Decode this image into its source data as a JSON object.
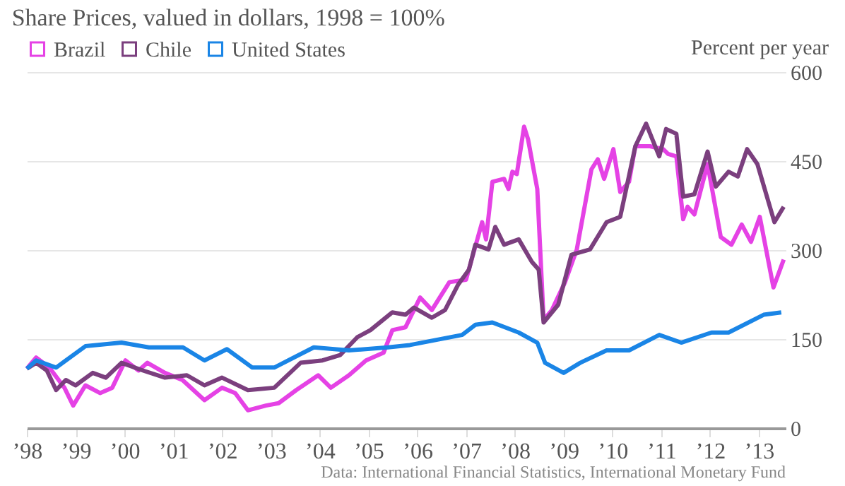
{
  "chart_data": {
    "type": "line",
    "title": "Share Prices, valued in dollars, 1998 = 100%",
    "ylabel": "Percent per year",
    "annotations": [
      "Data: International Financial Statistics, International Monetary Fund"
    ],
    "xlim": [
      1998,
      2013.55
    ],
    "xticks": [
      {
        "value": 1998,
        "label": "’98"
      },
      {
        "value": 1999,
        "label": "’99"
      },
      {
        "value": 2000,
        "label": "’00"
      },
      {
        "value": 2001,
        "label": "’01"
      },
      {
        "value": 2002,
        "label": "’02"
      },
      {
        "value": 2003,
        "label": "’03"
      },
      {
        "value": 2004,
        "label": "’04"
      },
      {
        "value": 2005,
        "label": "’05"
      },
      {
        "value": 2006,
        "label": "’06"
      },
      {
        "value": 2007,
        "label": "’07"
      },
      {
        "value": 2008,
        "label": "’08"
      },
      {
        "value": 2009,
        "label": "’09"
      },
      {
        "value": 2010,
        "label": "’10"
      },
      {
        "value": 2011,
        "label": "’11"
      },
      {
        "value": 2012,
        "label": "’12"
      },
      {
        "value": 2013,
        "label": "’13"
      }
    ],
    "ylim": [
      0,
      600
    ],
    "yticks": [
      0,
      150,
      300,
      450,
      600
    ],
    "grid": "y",
    "legend": "top left",
    "line_style": "solid",
    "marker": "none",
    "series": [
      {
        "name": "Brazil",
        "color": "#e542e5",
        "x": [
          1998.0,
          1998.19,
          1998.46,
          1998.77,
          1998.95,
          1999.2,
          1999.5,
          1999.75,
          2000.02,
          2000.29,
          2000.47,
          2000.83,
          2001.19,
          2001.64,
          2002.0,
          2002.27,
          2002.53,
          2002.9,
          2003.16,
          2003.52,
          2003.97,
          2004.23,
          2004.6,
          2004.95,
          2005.31,
          2005.49,
          2005.76,
          2006.06,
          2006.3,
          2006.66,
          2007.0,
          2007.33,
          2007.41,
          2007.54,
          2007.78,
          2007.87,
          2007.95,
          2008.04,
          2008.19,
          2008.27,
          2008.46,
          2008.59,
          2008.76,
          2009.03,
          2009.27,
          2009.57,
          2009.7,
          2009.83,
          2010.02,
          2010.16,
          2010.34,
          2010.47,
          2010.77,
          2011.04,
          2011.14,
          2011.31,
          2011.45,
          2011.54,
          2011.68,
          2011.95,
          2012.22,
          2012.44,
          2012.65,
          2012.84,
          2013.02,
          2013.3,
          2013.51
        ],
        "values": [
          100,
          119,
          102,
          68,
          38,
          72,
          59,
          68,
          114,
          97,
          110,
          93,
          81,
          47,
          68,
          59,
          30,
          38,
          42,
          64,
          89,
          68,
          89,
          114,
          127,
          165,
          170,
          220,
          199,
          246,
          250,
          347,
          318,
          415,
          420,
          403,
          432,
          428,
          508,
          487,
          403,
          182,
          199,
          246,
          301,
          436,
          453,
          420,
          470,
          398,
          415,
          475,
          475,
          470,
          462,
          458,
          352,
          373,
          360,
          445,
          322,
          309,
          343,
          314,
          356,
          237,
          284
        ]
      },
      {
        "name": "Chile",
        "color": "#7b3f7e",
        "x": [
          1998.0,
          1998.19,
          1998.41,
          1998.6,
          1998.8,
          1999.0,
          1999.35,
          1999.62,
          1999.94,
          2000.38,
          2000.83,
          2001.28,
          2001.64,
          2002.0,
          2002.53,
          2003.07,
          2003.61,
          2004.06,
          2004.42,
          2004.77,
          2005.04,
          2005.49,
          2005.76,
          2005.93,
          2006.3,
          2006.57,
          2006.84,
          2007.06,
          2007.19,
          2007.46,
          2007.6,
          2007.78,
          2008.08,
          2008.35,
          2008.49,
          2008.59,
          2008.89,
          2009.16,
          2009.54,
          2009.88,
          2010.16,
          2010.47,
          2010.69,
          2010.96,
          2011.1,
          2011.31,
          2011.45,
          2011.68,
          2011.95,
          2012.12,
          2012.38,
          2012.57,
          2012.76,
          2012.97,
          2013.32,
          2013.51
        ],
        "values": [
          100,
          110,
          97,
          64,
          81,
          72,
          93,
          85,
          110,
          97,
          85,
          89,
          72,
          85,
          64,
          68,
          110,
          114,
          123,
          153,
          165,
          195,
          191,
          203,
          186,
          199,
          242,
          267,
          309,
          301,
          339,
          309,
          318,
          280,
          267,
          178,
          208,
          292,
          301,
          347,
          356,
          475,
          513,
          458,
          504,
          496,
          390,
          394,
          466,
          407,
          432,
          424,
          470,
          445,
          347,
          373
        ]
      },
      {
        "name": "United States",
        "color": "#1a85e6",
        "x": [
          1998.0,
          1998.19,
          1998.6,
          1999.2,
          1999.94,
          2000.5,
          2001.2,
          2001.64,
          2002.1,
          2002.62,
          2003.07,
          2003.88,
          2004.6,
          2005.4,
          2005.85,
          2006.92,
          2007.19,
          2007.54,
          2008.08,
          2008.46,
          2008.62,
          2009.0,
          2009.34,
          2009.88,
          2010.34,
          2010.96,
          2011.41,
          2012.03,
          2012.38,
          2013.1,
          2013.46
        ],
        "values": [
          100,
          114,
          102,
          138,
          144,
          136,
          136,
          114,
          133,
          102,
          102,
          136,
          131,
          136,
          140,
          157,
          174,
          178,
          161,
          144,
          110,
          93,
          110,
          131,
          131,
          157,
          144,
          161,
          161,
          191,
          195
        ]
      }
    ]
  }
}
